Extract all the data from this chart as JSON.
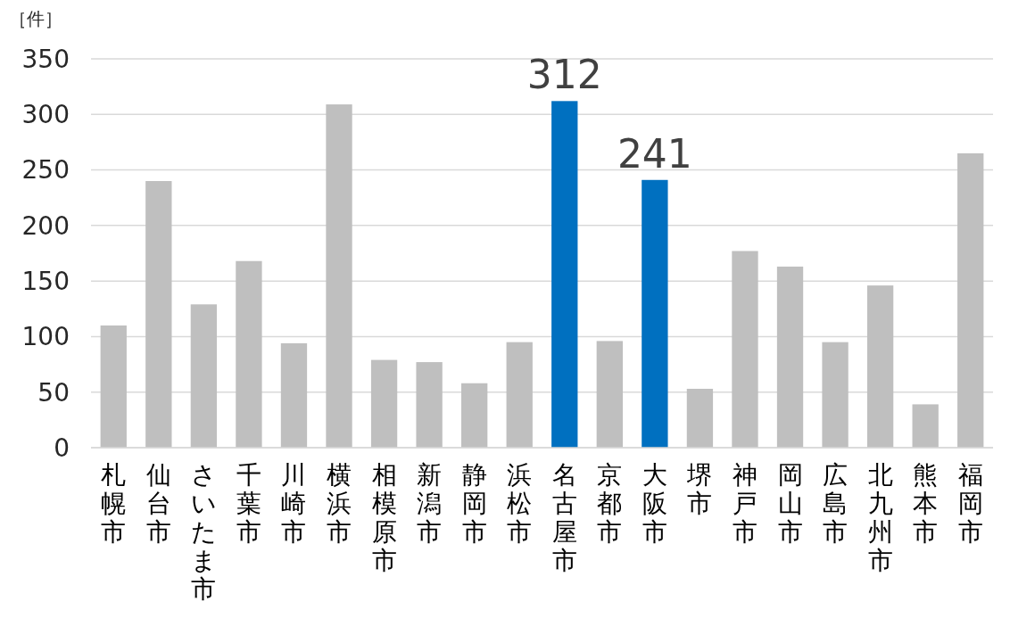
{
  "chart_data": {
    "type": "bar",
    "ylabel": "［件］",
    "categories": [
      "札幌市",
      "仙台市",
      "さいたま市",
      "千葉市",
      "川崎市",
      "横浜市",
      "相模原市",
      "新潟市",
      "静岡市",
      "浜松市",
      "名古屋市",
      "京都市",
      "大阪市",
      "堺市",
      "神戸市",
      "岡山市",
      "広島市",
      "北九州市",
      "熊本市",
      "福岡市"
    ],
    "values": [
      110,
      240,
      129,
      168,
      94,
      309,
      79,
      77,
      58,
      95,
      312,
      96,
      241,
      53,
      177,
      163,
      95,
      146,
      39,
      265
    ],
    "colors": [
      "#bfbfbf",
      "#bfbfbf",
      "#bfbfbf",
      "#bfbfbf",
      "#bfbfbf",
      "#bfbfbf",
      "#bfbfbf",
      "#bfbfbf",
      "#bfbfbf",
      "#bfbfbf",
      "#0070c0",
      "#bfbfbf",
      "#0070c0",
      "#bfbfbf",
      "#bfbfbf",
      "#bfbfbf",
      "#bfbfbf",
      "#bfbfbf",
      "#bfbfbf",
      "#bfbfbf"
    ],
    "value_labels": [
      null,
      null,
      null,
      null,
      null,
      null,
      null,
      null,
      null,
      null,
      "312",
      null,
      "241",
      null,
      null,
      null,
      null,
      null,
      null,
      null
    ],
    "ylim": [
      0,
      350
    ],
    "yticks": [
      0,
      50,
      100,
      150,
      200,
      250,
      300,
      350
    ],
    "grid": "y"
  }
}
